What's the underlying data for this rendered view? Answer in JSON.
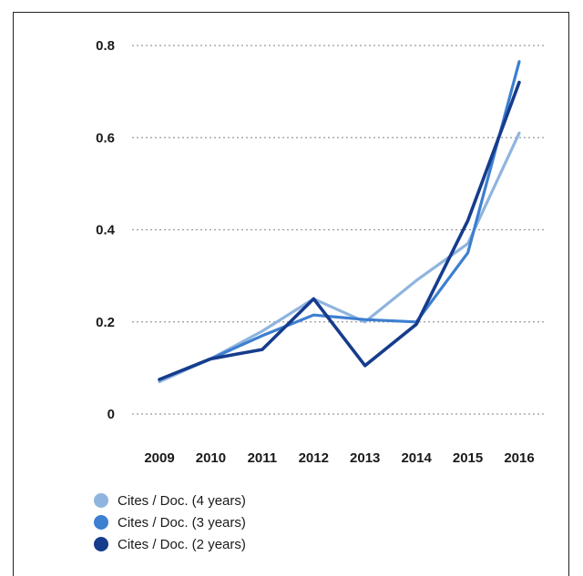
{
  "chart_data": {
    "type": "line",
    "categories": [
      "2009",
      "2010",
      "2011",
      "2012",
      "2013",
      "2014",
      "2015",
      "2016"
    ],
    "y_ticks": [
      "0",
      "0.2",
      "0.4",
      "0.6",
      "0.8"
    ],
    "y_tick_values": [
      0,
      0.2,
      0.4,
      0.6,
      0.8
    ],
    "ylim": [
      0,
      0.8
    ],
    "grid": "horizontal dotted",
    "legend_placement": "bottom-left",
    "series": [
      {
        "name": "Cites / Doc. (4 years)",
        "color": "#8fb4df",
        "values": [
          0.07,
          0.12,
          0.18,
          0.25,
          0.2,
          0.29,
          0.37,
          0.61
        ]
      },
      {
        "name": "Cites / Doc. (3 years)",
        "color": "#3d7fd0",
        "values": [
          0.075,
          0.12,
          0.17,
          0.215,
          0.205,
          0.2,
          0.35,
          0.765
        ]
      },
      {
        "name": "Cites / Doc. (2 years)",
        "color": "#163c8c",
        "values": [
          0.075,
          0.12,
          0.14,
          0.25,
          0.105,
          0.195,
          0.42,
          0.72
        ]
      }
    ]
  }
}
